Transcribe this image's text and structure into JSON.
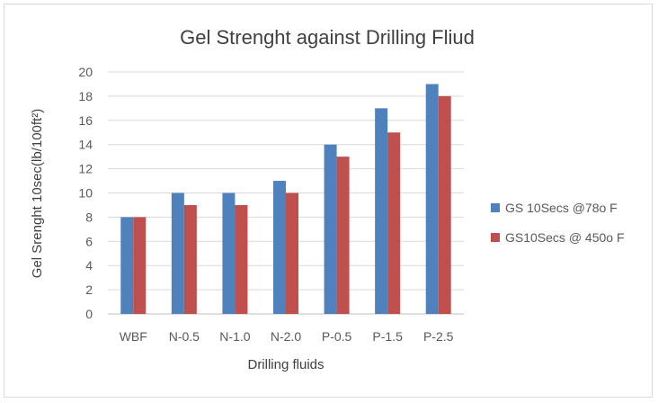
{
  "chart_data": {
    "type": "bar",
    "title": "Gel Strenght against Drilling Fliud",
    "xlabel": "Drilling fluids",
    "ylabel": "Gel Srenght 10sec(lb/100ft²)",
    "categories": [
      "WBF",
      "N-0.5",
      "N-1.0",
      "N-2.0",
      "P-0.5",
      "P-1.5",
      "P-2.5"
    ],
    "ylim": [
      0,
      20
    ],
    "ytick_step": 2,
    "grid": true,
    "legend_position": "right",
    "series": [
      {
        "name": "GS 10Secs @78o F",
        "color": "#4f81bd",
        "values": [
          8,
          10,
          10,
          11,
          14,
          17,
          19
        ]
      },
      {
        "name": "GS10Secs @ 450o F",
        "color": "#c0504d",
        "values": [
          8,
          9,
          9,
          10,
          13,
          15,
          18
        ]
      }
    ]
  }
}
